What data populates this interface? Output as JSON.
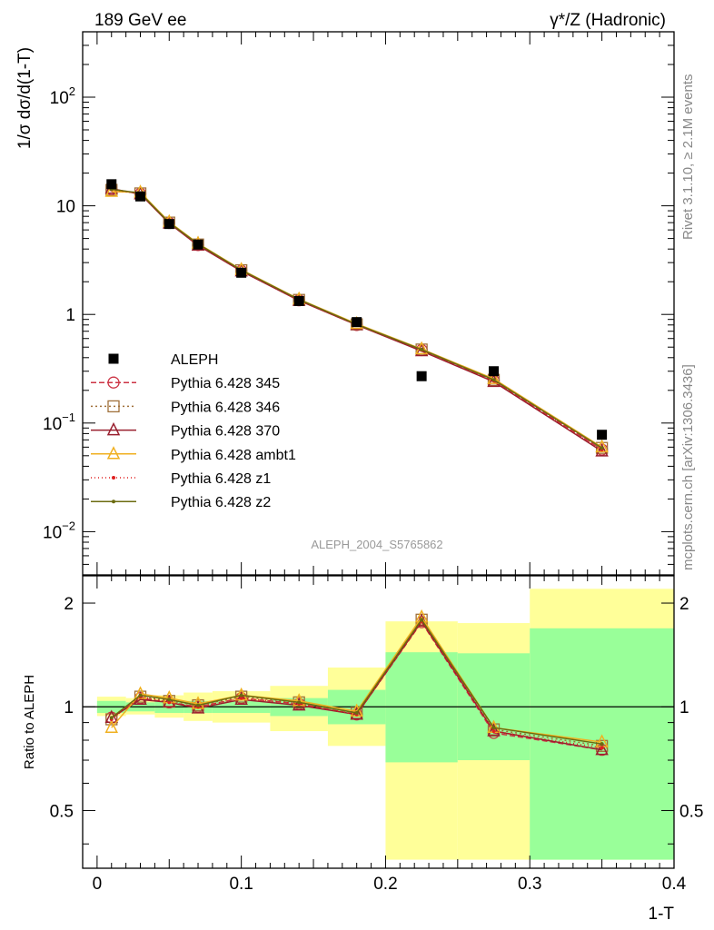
{
  "header": {
    "left": "189 GeV ee",
    "right_sup": "γ*/Z (Hadronic)"
  },
  "side": {
    "rivet": "Rivet 3.1.10, ≥ 2.1M events",
    "mcplots": "mcplots.cern.ch [arXiv:1306.3436]"
  },
  "watermark": "ALEPH_2004_S5765862",
  "chart_data": [
    {
      "type": "line",
      "panel": "main",
      "ylabel": "1/σ dσ/d(1-T)",
      "yscale": "log",
      "ylim": [
        0.004,
        400
      ],
      "xlim": [
        -0.01,
        0.4
      ],
      "ytick_labels": [
        "10^-2",
        "10^-1",
        "1",
        "10",
        "10^2"
      ],
      "x": [
        0.01,
        0.03,
        0.05,
        0.07,
        0.1,
        0.14,
        0.18,
        0.225,
        0.275,
        0.35
      ],
      "data": {
        "name": "ALEPH",
        "marker": "square",
        "color": "#000000",
        "values": [
          15.8,
          12.2,
          6.8,
          4.4,
          2.42,
          1.33,
          0.85,
          0.27,
          0.3,
          0.078
        ]
      },
      "series": [
        {
          "name": "Pythia 6.428 345",
          "color": "#cc3344",
          "dash": "6,3",
          "marker": "circle-open",
          "values": [
            14.2,
            12.9,
            6.95,
            4.35,
            2.52,
            1.35,
            0.8,
            0.47,
            0.245,
            0.057
          ]
        },
        {
          "name": "Pythia 6.428 346",
          "color": "#a0703a",
          "dash": "2,3",
          "marker": "square-open",
          "values": [
            14.0,
            13.0,
            7.0,
            4.4,
            2.55,
            1.36,
            0.81,
            0.475,
            0.25,
            0.059
          ]
        },
        {
          "name": "Pythia 6.428 370",
          "color": "#991f2e",
          "dash": "",
          "marker": "triangle-open",
          "values": [
            14.4,
            12.8,
            6.9,
            4.32,
            2.5,
            1.34,
            0.8,
            0.46,
            0.24,
            0.055
          ]
        },
        {
          "name": "Pythia 6.428 ambt1",
          "color": "#f0b020",
          "dash": "",
          "marker": "triangle-open",
          "values": [
            13.5,
            13.3,
            7.1,
            4.5,
            2.58,
            1.38,
            0.82,
            0.48,
            0.255,
            0.06
          ]
        },
        {
          "name": "Pythia 6.428 z1",
          "color": "#e02020",
          "dash": "1,3",
          "marker": "dot",
          "values": [
            14.1,
            12.9,
            6.95,
            4.38,
            2.53,
            1.35,
            0.8,
            0.47,
            0.245,
            0.057
          ]
        },
        {
          "name": "Pythia 6.428 z2",
          "color": "#6b6b10",
          "dash": "",
          "marker": "dot",
          "values": [
            14.2,
            13.1,
            7.0,
            4.45,
            2.56,
            1.37,
            0.81,
            0.475,
            0.25,
            0.059
          ]
        }
      ]
    },
    {
      "type": "line",
      "panel": "ratio",
      "xlabel": "1-T",
      "ylabel": "Ratio to ALEPH",
      "yscale": "log",
      "ylim": [
        0.34,
        2.4
      ],
      "xlim": [
        -0.01,
        0.4
      ],
      "xtick_labels": [
        "0",
        "0.1",
        "0.2",
        "0.3",
        "0.4"
      ],
      "ytick_labels": [
        "0.5",
        "1",
        "2"
      ],
      "bins": [
        [
          0.0,
          0.02
        ],
        [
          0.02,
          0.04
        ],
        [
          0.04,
          0.06
        ],
        [
          0.06,
          0.08
        ],
        [
          0.08,
          0.12
        ],
        [
          0.12,
          0.16
        ],
        [
          0.16,
          0.2
        ],
        [
          0.2,
          0.25
        ],
        [
          0.25,
          0.3
        ],
        [
          0.3,
          0.4
        ]
      ],
      "band_green": [
        [
          0.96,
          1.04
        ],
        [
          0.97,
          1.03
        ],
        [
          0.96,
          1.04
        ],
        [
          0.96,
          1.04
        ],
        [
          0.96,
          1.04
        ],
        [
          0.94,
          1.06
        ],
        [
          0.89,
          1.12
        ],
        [
          0.69,
          1.44
        ],
        [
          0.7,
          1.43
        ],
        [
          0.36,
          1.69
        ]
      ],
      "band_yellow": [
        [
          0.94,
          1.07
        ],
        [
          0.95,
          1.06
        ],
        [
          0.93,
          1.08
        ],
        [
          0.91,
          1.1
        ],
        [
          0.9,
          1.11
        ],
        [
          0.85,
          1.15
        ],
        [
          0.77,
          1.3
        ],
        [
          0.36,
          1.77
        ],
        [
          0.36,
          1.75
        ],
        [
          0.36,
          2.2
        ]
      ],
      "x": [
        0.01,
        0.03,
        0.05,
        0.07,
        0.1,
        0.14,
        0.18,
        0.225,
        0.275,
        0.35
      ],
      "series": [
        {
          "name": "Pythia 6.428 345",
          "values": [
            0.93,
            1.06,
            1.03,
            1.0,
            1.06,
            1.02,
            0.95,
            1.76,
            0.84,
            0.75
          ]
        },
        {
          "name": "Pythia 6.428 346",
          "values": [
            0.92,
            1.07,
            1.04,
            1.01,
            1.07,
            1.03,
            0.96,
            1.79,
            0.86,
            0.77
          ]
        },
        {
          "name": "Pythia 6.428 370",
          "values": [
            0.93,
            1.05,
            1.03,
            0.99,
            1.05,
            1.01,
            0.95,
            1.77,
            0.85,
            0.75
          ]
        },
        {
          "name": "Pythia 6.428 ambt1",
          "values": [
            0.87,
            1.09,
            1.06,
            1.02,
            1.08,
            1.04,
            0.97,
            1.82,
            0.87,
            0.79
          ]
        },
        {
          "name": "Pythia 6.428 z1",
          "values": [
            0.92,
            1.07,
            1.03,
            1.0,
            1.06,
            1.02,
            0.95,
            1.77,
            0.85,
            0.76
          ]
        },
        {
          "name": "Pythia 6.428 z2",
          "values": [
            0.93,
            1.08,
            1.05,
            1.01,
            1.08,
            1.03,
            0.96,
            1.79,
            0.87,
            0.78
          ]
        }
      ]
    }
  ]
}
